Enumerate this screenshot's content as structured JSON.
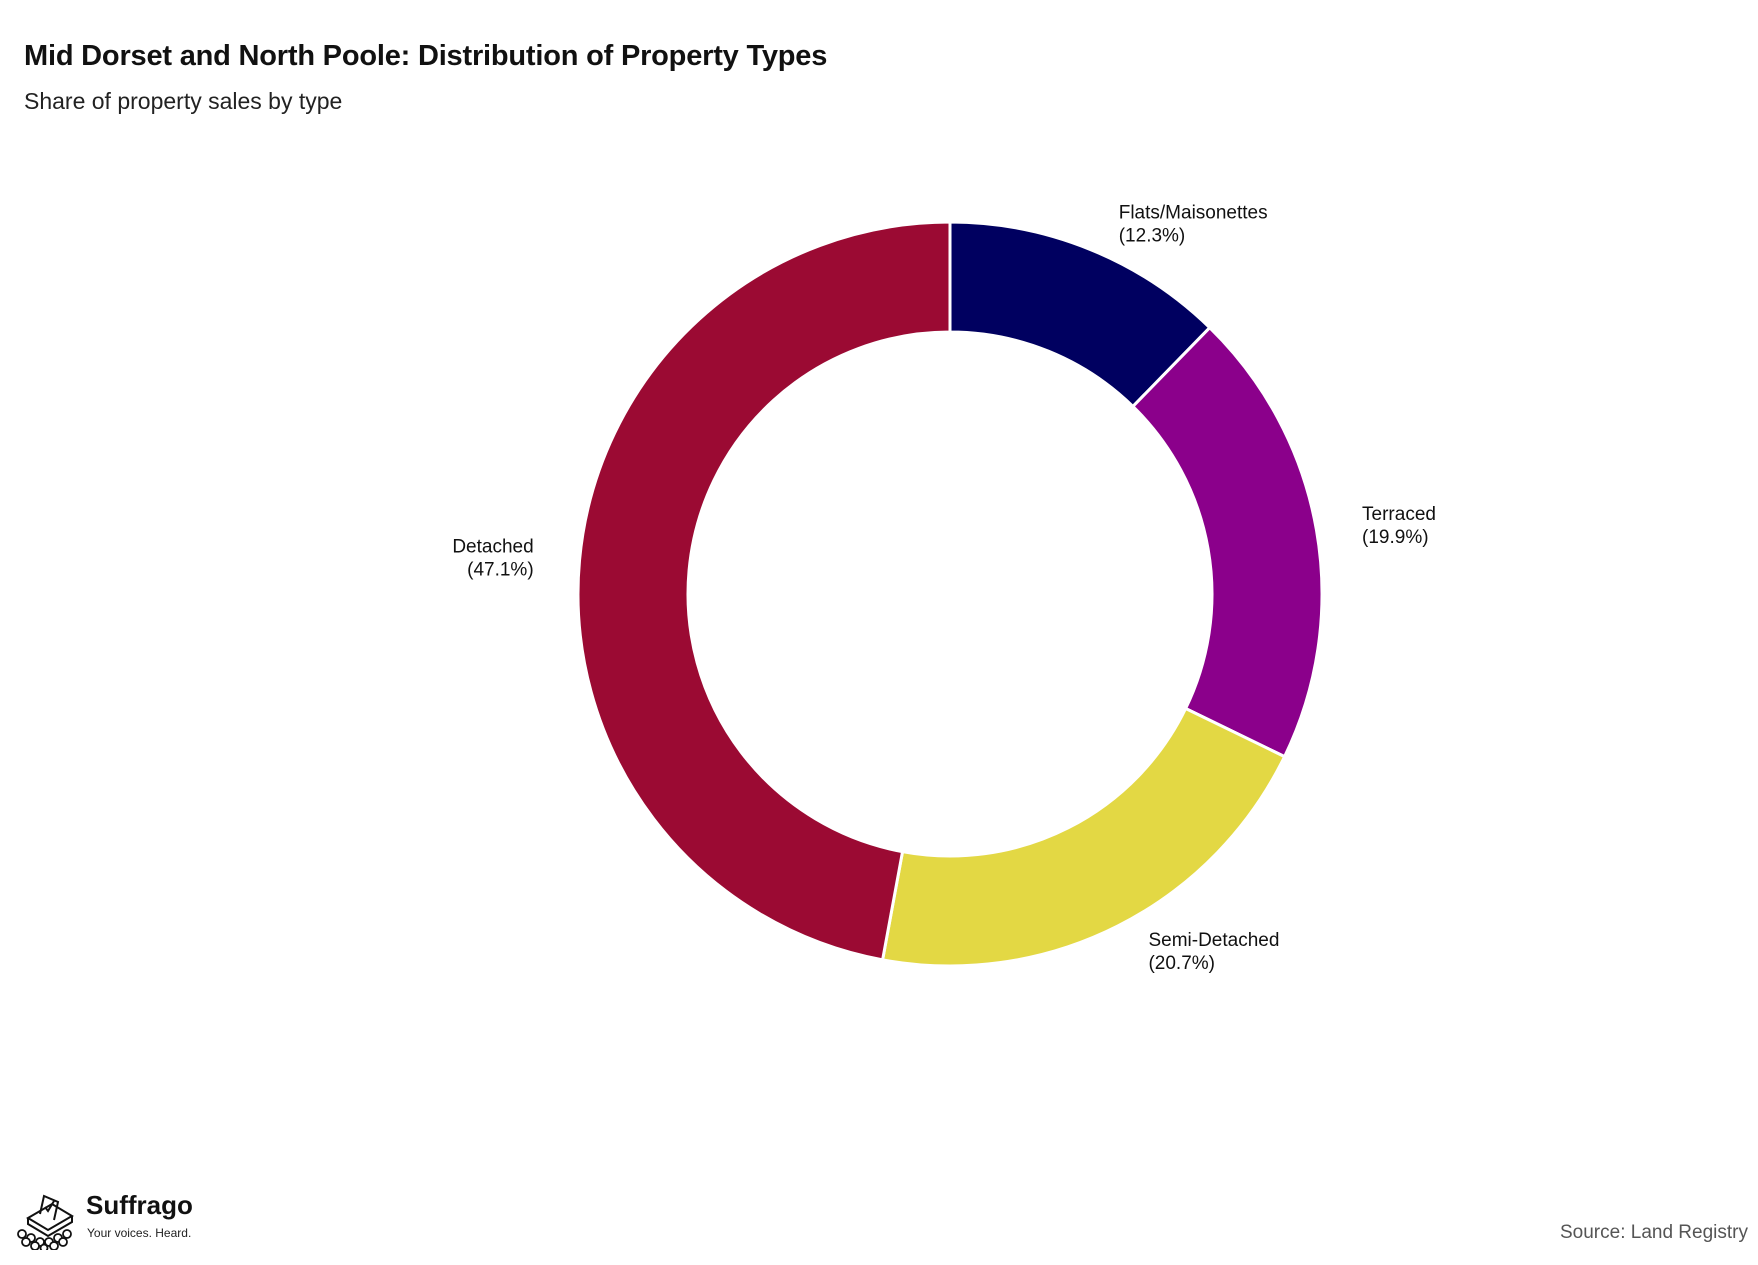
{
  "chart_data": {
    "type": "pie",
    "donut": true,
    "title": "Mid Dorset and North Poole: Distribution of Property Types",
    "subtitle": "Share of property sales by type",
    "unit": "%",
    "slices": [
      {
        "label": "Flats/Maisonettes",
        "value": 12.3,
        "display": "(12.3%)",
        "color": "#000060"
      },
      {
        "label": "Terraced",
        "value": 19.9,
        "display": "(19.9%)",
        "color": "#8B008B"
      },
      {
        "label": "Semi-Detached",
        "value": 20.7,
        "display": "(20.7%)",
        "color": "#E3D844"
      },
      {
        "label": "Detached",
        "value": 47.1,
        "display": "(47.1%)",
        "color": "#9B0A33"
      }
    ],
    "start": "12 o'clock",
    "direction": "clockwise",
    "legend": "none"
  },
  "branding": {
    "name": "Suffrago",
    "tagline": "Your voices. Heard.",
    "icon": "ballot-box-icon"
  },
  "source": "Source: Land Registry"
}
